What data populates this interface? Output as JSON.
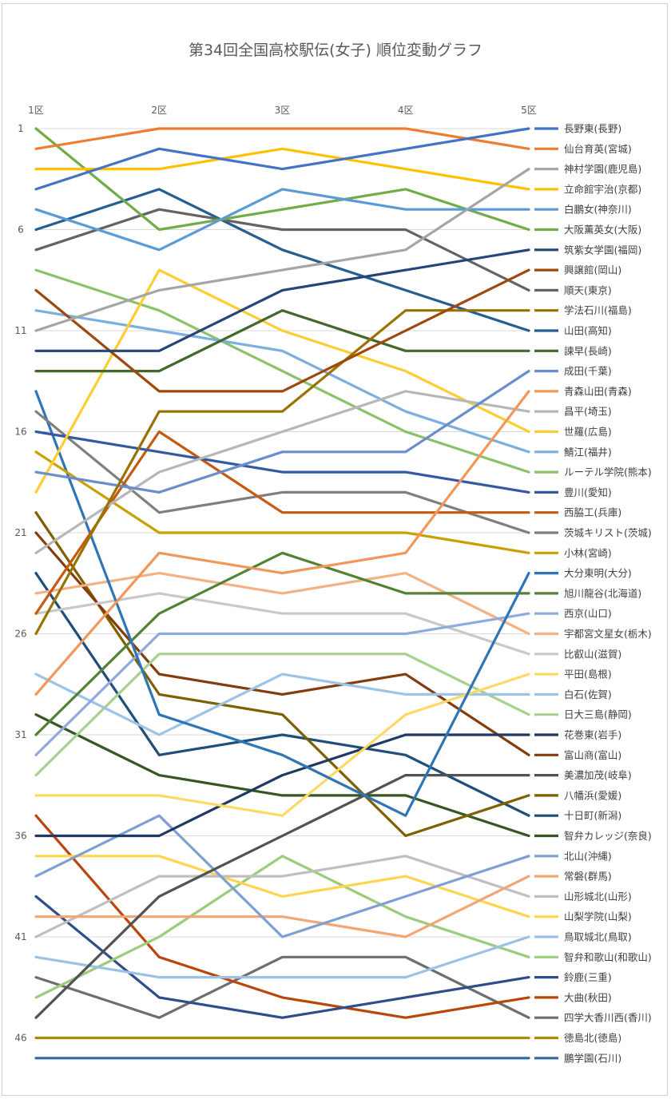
{
  "chart_data": {
    "type": "line",
    "title": "第34回全国高校駅伝(女子) 順位変動グラフ",
    "categories": [
      "1区",
      "2区",
      "3区",
      "4区",
      "5区"
    ],
    "y_ticks": [
      "1",
      "6",
      "11",
      "16",
      "21",
      "26",
      "31",
      "36",
      "41",
      "46"
    ],
    "ylim": [
      1,
      48
    ],
    "y_inverted": true,
    "grid": true,
    "legend_position": "right",
    "series": [
      {
        "name": "長野東(長野)",
        "color": "#4472C4",
        "values": [
          4,
          2,
          3,
          2,
          1
        ]
      },
      {
        "name": "仙台育英(宮城)",
        "color": "#ED7D31",
        "values": [
          2,
          1,
          1,
          1,
          2
        ]
      },
      {
        "name": "神村学園(鹿児島)",
        "color": "#A5A5A5",
        "values": [
          11,
          9,
          8,
          7,
          3
        ]
      },
      {
        "name": "立命館宇治(京都)",
        "color": "#FFC000",
        "values": [
          3,
          3,
          2,
          3,
          4
        ]
      },
      {
        "name": "白鵬女(神奈川)",
        "color": "#5B9BD5",
        "values": [
          5,
          7,
          4,
          5,
          5
        ]
      },
      {
        "name": "大阪薫英女(大阪)",
        "color": "#70AD47",
        "values": [
          1,
          6,
          5,
          4,
          6
        ]
      },
      {
        "name": "筑紫女学園(福岡)",
        "color": "#264478",
        "values": [
          12,
          12,
          9,
          8,
          7
        ]
      },
      {
        "name": "興譲館(岡山)",
        "color": "#9E480E",
        "values": [
          9,
          14,
          14,
          11,
          8
        ]
      },
      {
        "name": "順天(東京)",
        "color": "#636363",
        "values": [
          7,
          5,
          6,
          6,
          9
        ]
      },
      {
        "name": "学法石川(福島)",
        "color": "#997300",
        "values": [
          26,
          15,
          15,
          10,
          10
        ]
      },
      {
        "name": "山田(高知)",
        "color": "#255E91",
        "values": [
          6,
          4,
          7,
          9,
          11
        ]
      },
      {
        "name": "諫早(長崎)",
        "color": "#43682B",
        "values": [
          13,
          13,
          10,
          12,
          12
        ]
      },
      {
        "name": "成田(千葉)",
        "color": "#698ED0",
        "values": [
          18,
          19,
          17,
          17,
          13
        ]
      },
      {
        "name": "青森山田(青森)",
        "color": "#F1975A",
        "values": [
          29,
          22,
          23,
          22,
          14
        ]
      },
      {
        "name": "昌平(埼玉)",
        "color": "#B7B7B7",
        "values": [
          22,
          18,
          16,
          14,
          15
        ]
      },
      {
        "name": "世羅(広島)",
        "color": "#FFCD33",
        "values": [
          19,
          8,
          11,
          13,
          16
        ]
      },
      {
        "name": "鯖江(福井)",
        "color": "#7CAFDD",
        "values": [
          10,
          11,
          12,
          15,
          17
        ]
      },
      {
        "name": "ルーテル学院(熊本)",
        "color": "#8CC168",
        "values": [
          8,
          10,
          13,
          16,
          18
        ]
      },
      {
        "name": "豊川(愛知)",
        "color": "#335AA1",
        "values": [
          16,
          17,
          18,
          18,
          19
        ]
      },
      {
        "name": "西脇工(兵庫)",
        "color": "#C55A11",
        "values": [
          25,
          16,
          20,
          20,
          20
        ]
      },
      {
        "name": "茨城キリスト(茨城)",
        "color": "#7F7F7F",
        "values": [
          15,
          20,
          19,
          19,
          21
        ]
      },
      {
        "name": "小林(宮崎)",
        "color": "#C9A000",
        "values": [
          17,
          21,
          21,
          21,
          22
        ]
      },
      {
        "name": "大分東明(大分)",
        "color": "#2E75B6",
        "values": [
          14,
          30,
          32,
          35,
          23
        ]
      },
      {
        "name": "旭川龍谷(北海道)",
        "color": "#548235",
        "values": [
          31,
          25,
          22,
          24,
          24
        ]
      },
      {
        "name": "西京(山口)",
        "color": "#8FAADC",
        "values": [
          32,
          26,
          26,
          26,
          25
        ]
      },
      {
        "name": "宇都宮文星女(栃木)",
        "color": "#F4B183",
        "values": [
          24,
          23,
          24,
          23,
          26
        ]
      },
      {
        "name": "比叡山(滋賀)",
        "color": "#C9C9C9",
        "values": [
          25,
          24,
          25,
          25,
          27
        ]
      },
      {
        "name": "平田(島根)",
        "color": "#FFD966",
        "values": [
          34,
          34,
          35,
          30,
          28
        ]
      },
      {
        "name": "白石(佐賀)",
        "color": "#9DC3E6",
        "values": [
          28,
          31,
          28,
          29,
          29
        ]
      },
      {
        "name": "日大三島(静岡)",
        "color": "#A9D18E",
        "values": [
          33,
          27,
          27,
          27,
          30
        ]
      },
      {
        "name": "花巻東(岩手)",
        "color": "#203864",
        "values": [
          36,
          36,
          33,
          31,
          31
        ]
      },
      {
        "name": "富山商(富山)",
        "color": "#843C0C",
        "values": [
          21,
          28,
          29,
          28,
          32
        ]
      },
      {
        "name": "美濃加茂(岐阜)",
        "color": "#525252",
        "values": [
          45,
          39,
          36,
          33,
          33
        ]
      },
      {
        "name": "八幡浜(愛媛)",
        "color": "#7F6000",
        "values": [
          20,
          29,
          30,
          36,
          34
        ]
      },
      {
        "name": "十日町(新潟)",
        "color": "#1F4E79",
        "values": [
          23,
          32,
          31,
          32,
          35
        ]
      },
      {
        "name": "智弁カレッジ(奈良)",
        "color": "#375623",
        "values": [
          30,
          33,
          34,
          34,
          36
        ]
      },
      {
        "name": "北山(沖縄)",
        "color": "#7F9FD4",
        "values": [
          38,
          35,
          41,
          39,
          37
        ]
      },
      {
        "name": "常磐(群馬)",
        "color": "#F4A574",
        "values": [
          40,
          40,
          40,
          41,
          38
        ]
      },
      {
        "name": "山形城北(山形)",
        "color": "#BFBFBF",
        "values": [
          41,
          38,
          38,
          37,
          39
        ]
      },
      {
        "name": "山梨学院(山梨)",
        "color": "#FFD54F",
        "values": [
          37,
          37,
          39,
          38,
          40
        ]
      },
      {
        "name": "鳥取城北(鳥取)",
        "color": "#9BC2E6",
        "values": [
          42,
          43,
          43,
          43,
          41
        ]
      },
      {
        "name": "智弁和歌山(和歌山)",
        "color": "#9CCC7A",
        "values": [
          44,
          41,
          37,
          40,
          42
        ]
      },
      {
        "name": "鈴鹿(三重)",
        "color": "#2F4D8A",
        "values": [
          39,
          44,
          45,
          44,
          43
        ]
      },
      {
        "name": "大曲(秋田)",
        "color": "#B9470B",
        "values": [
          35,
          42,
          44,
          45,
          44
        ]
      },
      {
        "name": "四学大香川西(香川)",
        "color": "#6E6E6E",
        "values": [
          43,
          45,
          42,
          42,
          45
        ]
      },
      {
        "name": "徳島北(徳島)",
        "color": "#AA8A00",
        "values": [
          46,
          46,
          46,
          46,
          46
        ]
      },
      {
        "name": "鵬学園(石川)",
        "color": "#2C6BA8",
        "values": [
          47,
          47,
          47,
          47,
          47
        ]
      }
    ]
  }
}
